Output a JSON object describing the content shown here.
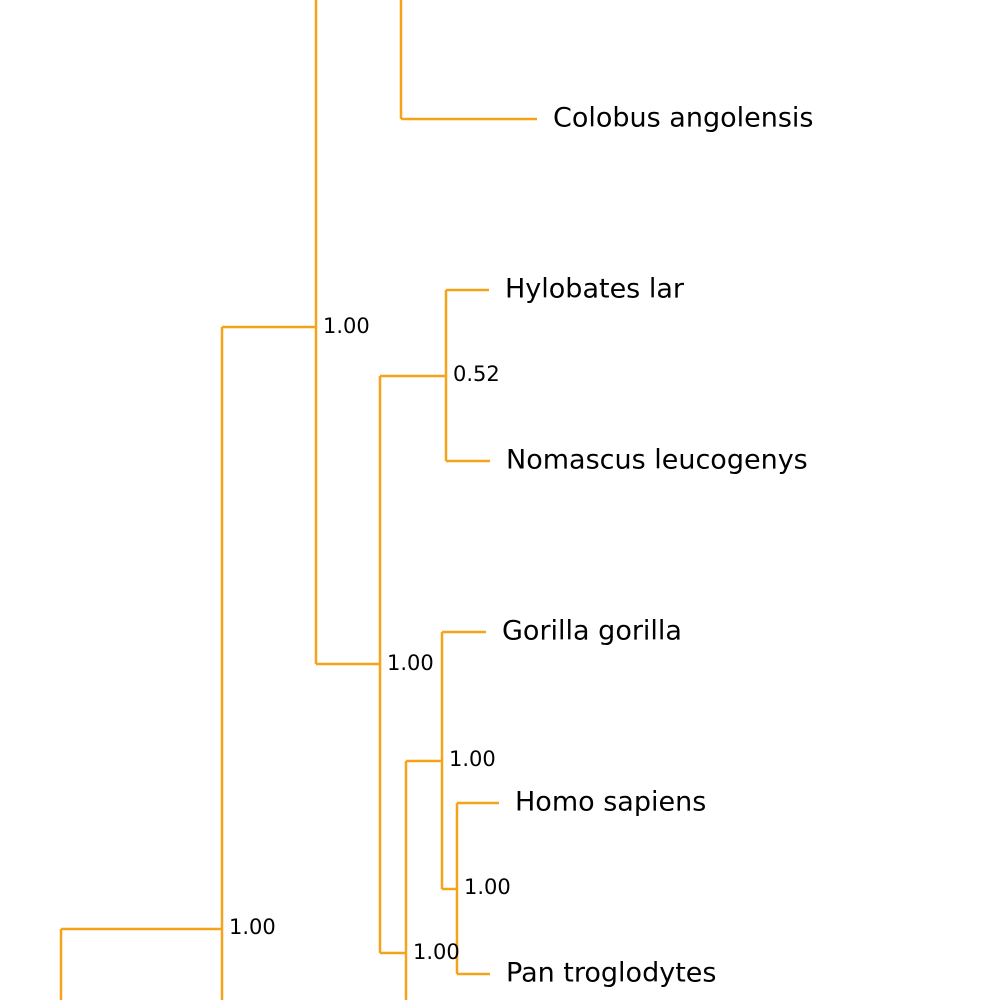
{
  "tree": {
    "branch_color": "#f5a41a",
    "text_color": "#000000",
    "leaves": [
      {
        "id": "colobus",
        "label": "Colobus angolensis"
      },
      {
        "id": "hylobates",
        "label": "Hylobates lar"
      },
      {
        "id": "nomascus",
        "label": "Nomascus leucogenys"
      },
      {
        "id": "gorilla",
        "label": "Gorilla gorilla"
      },
      {
        "id": "homo",
        "label": "Homo sapiens"
      },
      {
        "id": "pan",
        "label": "Pan troglodytes"
      }
    ],
    "supports": [
      {
        "id": "catarrhini",
        "value": "1.00"
      },
      {
        "id": "hylobatidae",
        "value": "0.52"
      },
      {
        "id": "hominoidea",
        "value": "1.00"
      },
      {
        "id": "homininae",
        "value": "1.00"
      },
      {
        "id": "hominini",
        "value": "1.00"
      },
      {
        "id": "outer",
        "value": "1.00"
      },
      {
        "id": "lower",
        "value": "1.00"
      }
    ]
  }
}
